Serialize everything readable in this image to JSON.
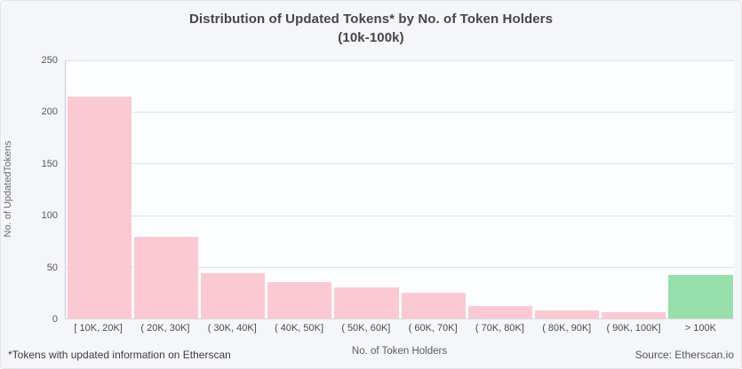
{
  "title": {
    "line1": "Distribution of Updated Tokens* by No. of Token Holders",
    "line2": "(10k-100k)"
  },
  "footer": {
    "note": "*Tokens with updated information on Etherscan",
    "source": "Source: Etherscan.io"
  },
  "chart_data": {
    "type": "bar",
    "title": "Distribution of Updated Tokens* by No. of Token Holders (10k-100k)",
    "xlabel": "No. of Token Holders",
    "ylabel": "No. of UpdatedTokens",
    "categories": [
      "[ 10K, 20K]",
      "( 20K, 30K]",
      "( 30K, 40K]",
      "( 40K, 50K]",
      "( 50K, 60K]",
      "( 60K, 70K]",
      "( 70K, 80K]",
      "( 80K, 90K]",
      "( 90K, 100K]",
      "> 100K"
    ],
    "values": [
      215,
      79,
      44,
      35,
      30,
      25,
      12,
      8,
      6,
      42
    ],
    "bar_colors": [
      "#fbc9d2",
      "#fbc9d2",
      "#fbc9d2",
      "#fbc9d2",
      "#fbc9d2",
      "#fbc9d2",
      "#fbc9d2",
      "#fbc9d2",
      "#fbc9d2",
      "#99dfab"
    ],
    "ylim": [
      0,
      250
    ],
    "yticks": [
      0,
      50,
      100,
      150,
      200,
      250
    ],
    "grid": "horizontal",
    "legend": "none",
    "accent_colors": {
      "pink": "#fbc9d2",
      "green": "#99dfab"
    }
  }
}
